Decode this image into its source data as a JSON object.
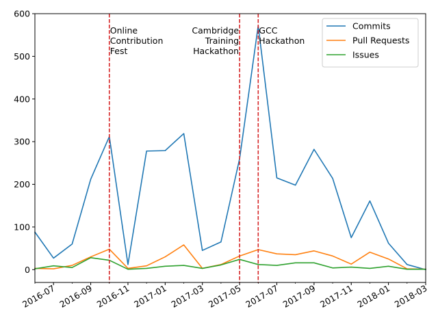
{
  "chart_data": {
    "type": "line",
    "title": "",
    "xlabel": "",
    "ylabel": "",
    "x": [
      "2016-06",
      "2016-07",
      "2016-08",
      "2016-09",
      "2016-10",
      "2016-11",
      "2016-12",
      "2017-01",
      "2017-02",
      "2017-03",
      "2017-04",
      "2017-05",
      "2017-06",
      "2017-07",
      "2017-08",
      "2017-09",
      "2017-10",
      "2017-11",
      "2017-12",
      "2018-01",
      "2018-02",
      "2018-03"
    ],
    "series": [
      {
        "name": "Commits",
        "color": "#1f77b4",
        "values": [
          88,
          27,
          60,
          212,
          312,
          12,
          278,
          279,
          319,
          45,
          65,
          260,
          572,
          215,
          198,
          282,
          214,
          75,
          161,
          62,
          12,
          0
        ]
      },
      {
        "name": "Pull Requests",
        "color": "#ff7f0e",
        "values": [
          3,
          2,
          10,
          30,
          48,
          3,
          9,
          30,
          58,
          3,
          12,
          32,
          47,
          37,
          35,
          44,
          32,
          13,
          41,
          25,
          2,
          1
        ]
      },
      {
        "name": "Issues",
        "color": "#2ca02c",
        "values": [
          2,
          9,
          5,
          28,
          22,
          1,
          3,
          8,
          10,
          3,
          11,
          24,
          12,
          10,
          16,
          16,
          4,
          6,
          3,
          8,
          1,
          1
        ]
      }
    ],
    "xlim": [
      "2016-06",
      "2018-03"
    ],
    "ylim": [
      -30,
      600
    ],
    "yticks": [
      0,
      100,
      200,
      300,
      400,
      500,
      600
    ],
    "xticks": [
      {
        "date": "2016-07",
        "label": "2016-07"
      },
      {
        "date": "2016-09",
        "label": "2016-09"
      },
      {
        "date": "2016-11",
        "label": "2016-11"
      },
      {
        "date": "2017-01",
        "label": "2017-01"
      },
      {
        "date": "2017-03",
        "label": "2017-03"
      },
      {
        "date": "2017-05",
        "label": "2017-05"
      },
      {
        "date": "2017-07",
        "label": "2017-07"
      },
      {
        "date": "2017-09",
        "label": "2017-09"
      },
      {
        "date": "2017-11",
        "label": "2017-11"
      },
      {
        "date": "2018-01",
        "label": "2018-01"
      },
      {
        "date": "2018-03",
        "label": "2018-03"
      }
    ],
    "events": [
      {
        "date": "2016-10",
        "label": "Online\nContribution\nFest",
        "align": "left"
      },
      {
        "date": "2017-05",
        "label": "Cambridge\nTraining\nHackathon",
        "align": "right"
      },
      {
        "date": "2017-06",
        "label": "GCC\nHackathon",
        "align": "left"
      }
    ],
    "event_line_color": "#d62728",
    "grid": false,
    "legend_position": "upper right"
  }
}
